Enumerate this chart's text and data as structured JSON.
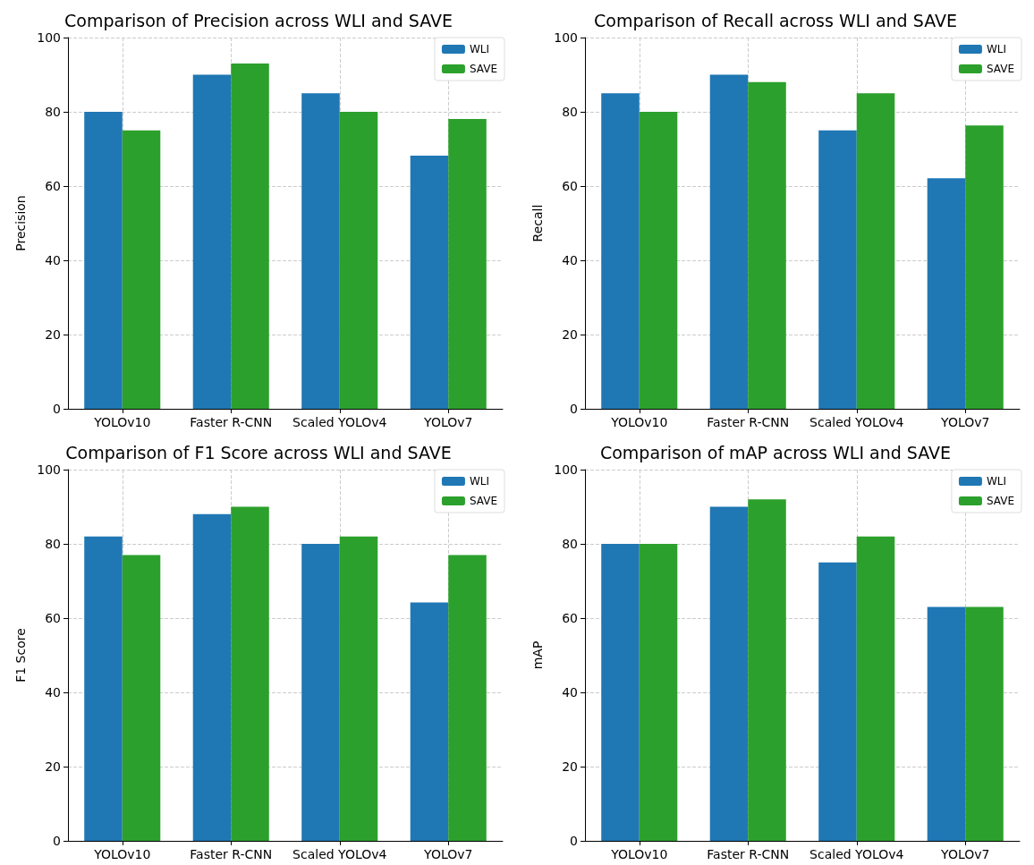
{
  "chart_data": [
    {
      "type": "bar",
      "title": "Comparison of Precision across WLI and SAVE",
      "ylabel": "Precision",
      "categories": [
        "YOLOv10",
        "Faster R-CNN",
        "Scaled YOLOv4",
        "YOLOv7"
      ],
      "series": [
        {
          "name": "WLI",
          "color": "#1f77b4",
          "values": [
            80,
            90,
            85,
            68.2
          ]
        },
        {
          "name": "SAVE",
          "color": "#2ca02c",
          "values": [
            75,
            93,
            80,
            78.1
          ]
        }
      ],
      "ylim": [
        0,
        100
      ],
      "yticks": [
        0,
        20,
        40,
        60,
        80,
        100
      ],
      "grid": true,
      "legend": "top right"
    },
    {
      "type": "bar",
      "title": "Comparison of Recall across WLI and SAVE",
      "ylabel": "Recall",
      "categories": [
        "YOLOv10",
        "Faster R-CNN",
        "Scaled YOLOv4",
        "YOLOv7"
      ],
      "series": [
        {
          "name": "WLI",
          "color": "#1f77b4",
          "values": [
            85,
            90,
            75,
            62.1
          ]
        },
        {
          "name": "SAVE",
          "color": "#2ca02c",
          "values": [
            80,
            88,
            85,
            76.3
          ]
        }
      ],
      "ylim": [
        0,
        100
      ],
      "yticks": [
        0,
        20,
        40,
        60,
        80,
        100
      ],
      "grid": true,
      "legend": "top right"
    },
    {
      "type": "bar",
      "title": "Comparison of F1 Score across WLI and SAVE",
      "ylabel": "F1 Score",
      "categories": [
        "YOLOv10",
        "Faster R-CNN",
        "Scaled YOLOv4",
        "YOLOv7"
      ],
      "series": [
        {
          "name": "WLI",
          "color": "#1f77b4",
          "values": [
            82,
            88,
            80,
            64.2
          ]
        },
        {
          "name": "SAVE",
          "color": "#2ca02c",
          "values": [
            77,
            90,
            82,
            77
          ]
        }
      ],
      "ylim": [
        0,
        100
      ],
      "yticks": [
        0,
        20,
        40,
        60,
        80,
        100
      ],
      "grid": true,
      "legend": "top right"
    },
    {
      "type": "bar",
      "title": "Comparison of mAP across WLI and SAVE",
      "ylabel": "mAP",
      "categories": [
        "YOLOv10",
        "Faster R-CNN",
        "Scaled YOLOv4",
        "YOLOv7"
      ],
      "series": [
        {
          "name": "WLI",
          "color": "#1f77b4",
          "values": [
            80,
            90,
            75,
            63
          ]
        },
        {
          "name": "SAVE",
          "color": "#2ca02c",
          "values": [
            80,
            92,
            82,
            63
          ]
        }
      ],
      "ylim": [
        0,
        100
      ],
      "yticks": [
        0,
        20,
        40,
        60,
        80,
        100
      ],
      "grid": true,
      "legend": "top right"
    }
  ]
}
